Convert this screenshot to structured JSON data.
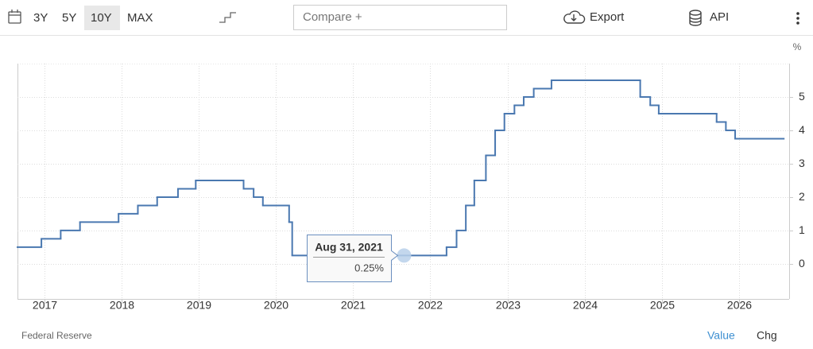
{
  "toolbar": {
    "ranges": [
      "3Y",
      "5Y",
      "10Y",
      "MAX"
    ],
    "active": "10Y",
    "compare": "Compare +",
    "export": "Export",
    "api": "API"
  },
  "chart_data": {
    "type": "step-line",
    "unit": "%",
    "x": [
      2016.65,
      2016.96,
      2017.21,
      2017.46,
      2017.96,
      2018.21,
      2018.46,
      2018.73,
      2018.96,
      2019.58,
      2019.71,
      2019.83,
      2020.17,
      2020.21,
      2022.21,
      2022.34,
      2022.46,
      2022.57,
      2022.72,
      2022.84,
      2022.96,
      2023.09,
      2023.21,
      2023.34,
      2023.57,
      2024.72,
      2024.85,
      2024.96,
      2025.71,
      2025.83,
      2025.95,
      2026.58
    ],
    "values": [
      0.5,
      0.75,
      1.0,
      1.25,
      1.5,
      1.75,
      2.0,
      2.25,
      2.5,
      2.25,
      2.0,
      1.75,
      1.25,
      0.25,
      0.5,
      1.0,
      1.75,
      2.5,
      3.25,
      4.0,
      4.5,
      4.75,
      5.0,
      5.25,
      5.5,
      5.0,
      4.75,
      4.5,
      4.25,
      4.0,
      3.75,
      3.75
    ],
    "color": "#4a78b0",
    "xlim": [
      2016.65,
      2026.65
    ],
    "xticks": [
      2017,
      2018,
      2019,
      2020,
      2021,
      2022,
      2023,
      2024,
      2025,
      2026
    ],
    "ylim": [
      -1.05,
      6
    ],
    "yticks": [
      0,
      1,
      2,
      3,
      4,
      5
    ],
    "grid": true,
    "tooltip": {
      "date": "Aug 31, 2021",
      "x": 2021.66,
      "value": 0.25,
      "value_label": "0.25%"
    }
  },
  "footer": {
    "source": "Federal Reserve",
    "tabs": [
      "Value",
      "Chg"
    ]
  }
}
